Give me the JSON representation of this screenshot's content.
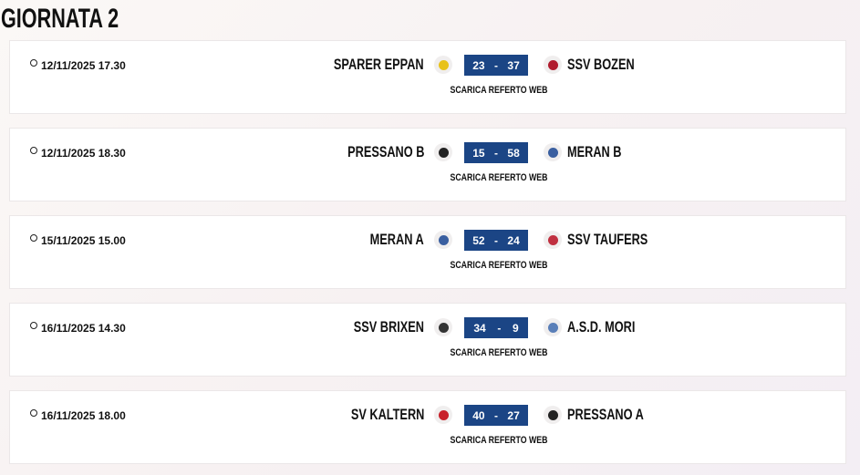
{
  "title": "GIORNATA 2",
  "report_label": "SCARICA REFERTO WEB",
  "score_color": "#1b4585",
  "matches": [
    {
      "date": "12/11/2025 17.30",
      "home": "SPARER EPPAN",
      "home_score": "23",
      "away_score": "37",
      "away": "SSV BOZEN",
      "home_logo_color": "#e8c21a",
      "away_logo_color": "#b01c2e"
    },
    {
      "date": "12/11/2025 18.30",
      "home": "PRESSANO B",
      "home_score": "15",
      "away_score": "58",
      "away": "MERAN B",
      "home_logo_color": "#222222",
      "away_logo_color": "#3a5fa0"
    },
    {
      "date": "15/11/2025 15.00",
      "home": "MERAN A",
      "home_score": "52",
      "away_score": "24",
      "away": "SSV TAUFERS",
      "home_logo_color": "#3a5fa0",
      "away_logo_color": "#c03040"
    },
    {
      "date": "16/11/2025 14.30",
      "home": "SSV BRIXEN",
      "home_score": "34",
      "away_score": "9",
      "away": "A.S.D. MORI",
      "home_logo_color": "#333333",
      "away_logo_color": "#5a7fb8"
    },
    {
      "date": "16/11/2025 18.00",
      "home": "SV KALTERN",
      "home_score": "40",
      "away_score": "27",
      "away": "PRESSANO A",
      "home_logo_color": "#c8202a",
      "away_logo_color": "#222222"
    }
  ]
}
